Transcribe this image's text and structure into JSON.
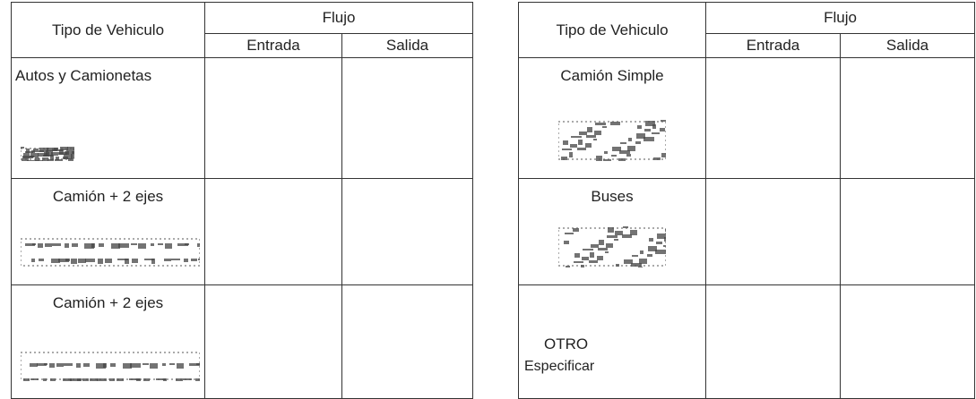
{
  "tables": [
    {
      "header": {
        "type": "Tipo de Vehiculo",
        "flow": "Flujo",
        "in": "Entrada",
        "out": "Salida"
      },
      "rows": [
        {
          "label": "Autos y Camionetas"
        },
        {
          "label": "Camión + 2 ejes"
        },
        {
          "label": "Camión + 2 ejes"
        }
      ]
    },
    {
      "header": {
        "type": "Tipo de Vehiculo",
        "flow": "Flujo",
        "in": "Entrada",
        "out": "Salida"
      },
      "rows": [
        {
          "label": "Camión Simple"
        },
        {
          "label": "Buses"
        },
        {
          "label": "OTRO",
          "note": "Especificar"
        }
      ]
    }
  ]
}
